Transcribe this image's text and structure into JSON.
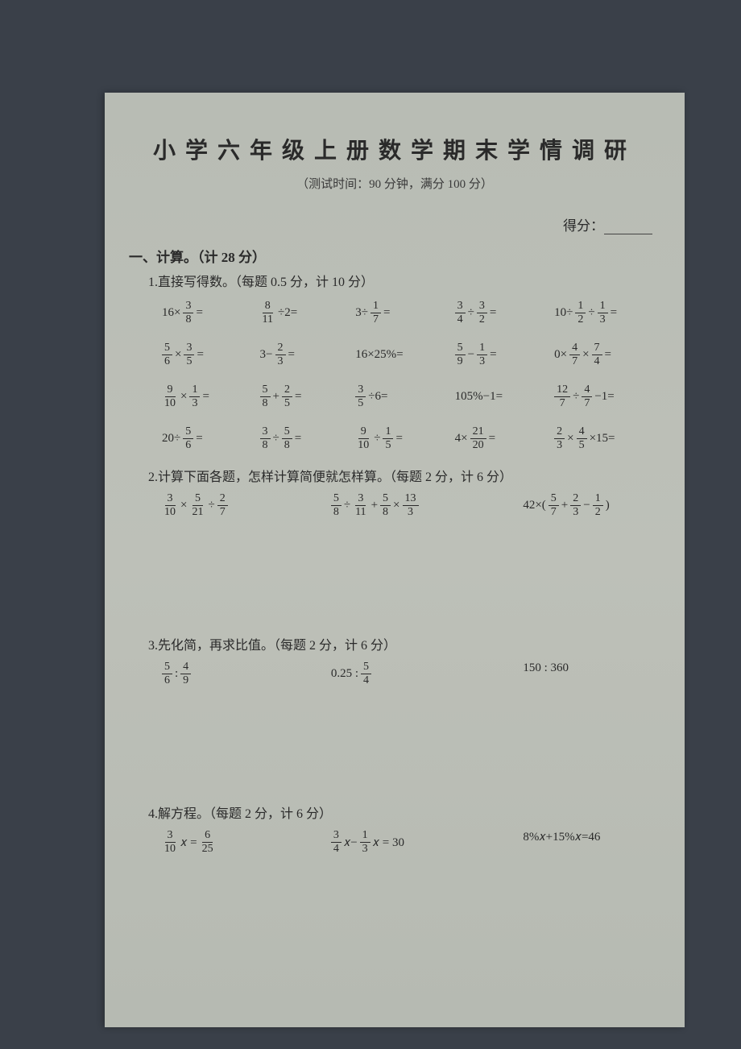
{
  "title": "小学六年级上册数学期末学情调研",
  "subtitle": "（测试时间：90 分钟，满分 100 分）",
  "score_label": "得分：",
  "section1": {
    "header": "一、计算。（计 28 分）",
    "q1": {
      "header": "1.直接写得数。（每题 0.5 分，计 10 分）",
      "rows": [
        [
          {
            "parts": [
              {
                "t": "txt",
                "v": "16×"
              },
              {
                "t": "frac",
                "n": "3",
                "d": "8"
              },
              {
                "t": "txt",
                "v": "="
              }
            ]
          },
          {
            "parts": [
              {
                "t": "frac",
                "n": "8",
                "d": "11"
              },
              {
                "t": "txt",
                "v": "÷2="
              }
            ]
          },
          {
            "parts": [
              {
                "t": "txt",
                "v": "3÷"
              },
              {
                "t": "frac",
                "n": "1",
                "d": "7"
              },
              {
                "t": "txt",
                "v": "="
              }
            ]
          },
          {
            "parts": [
              {
                "t": "frac",
                "n": "3",
                "d": "4"
              },
              {
                "t": "txt",
                "v": "÷"
              },
              {
                "t": "frac",
                "n": "3",
                "d": "2"
              },
              {
                "t": "txt",
                "v": "="
              }
            ]
          },
          {
            "parts": [
              {
                "t": "txt",
                "v": "10÷"
              },
              {
                "t": "frac",
                "n": "1",
                "d": "2"
              },
              {
                "t": "txt",
                "v": "÷"
              },
              {
                "t": "frac",
                "n": "1",
                "d": "3"
              },
              {
                "t": "txt",
                "v": "="
              }
            ]
          }
        ],
        [
          {
            "parts": [
              {
                "t": "frac",
                "n": "5",
                "d": "6"
              },
              {
                "t": "txt",
                "v": "×"
              },
              {
                "t": "frac",
                "n": "3",
                "d": "5"
              },
              {
                "t": "txt",
                "v": "="
              }
            ]
          },
          {
            "parts": [
              {
                "t": "txt",
                "v": "3−"
              },
              {
                "t": "frac",
                "n": "2",
                "d": "3"
              },
              {
                "t": "txt",
                "v": "="
              }
            ]
          },
          {
            "parts": [
              {
                "t": "txt",
                "v": "16×25%="
              }
            ]
          },
          {
            "parts": [
              {
                "t": "frac",
                "n": "5",
                "d": "9"
              },
              {
                "t": "txt",
                "v": "−"
              },
              {
                "t": "frac",
                "n": "1",
                "d": "3"
              },
              {
                "t": "txt",
                "v": "="
              }
            ]
          },
          {
            "parts": [
              {
                "t": "txt",
                "v": "0×"
              },
              {
                "t": "frac",
                "n": "4",
                "d": "7"
              },
              {
                "t": "txt",
                "v": "×"
              },
              {
                "t": "frac",
                "n": "7",
                "d": "4"
              },
              {
                "t": "txt",
                "v": "="
              }
            ]
          }
        ],
        [
          {
            "parts": [
              {
                "t": "frac",
                "n": "9",
                "d": "10"
              },
              {
                "t": "txt",
                "v": "×"
              },
              {
                "t": "frac",
                "n": "1",
                "d": "3"
              },
              {
                "t": "txt",
                "v": "="
              }
            ]
          },
          {
            "parts": [
              {
                "t": "frac",
                "n": "5",
                "d": "8"
              },
              {
                "t": "txt",
                "v": "+"
              },
              {
                "t": "frac",
                "n": "2",
                "d": "5"
              },
              {
                "t": "txt",
                "v": "="
              }
            ]
          },
          {
            "parts": [
              {
                "t": "frac",
                "n": "3",
                "d": "5"
              },
              {
                "t": "txt",
                "v": "÷6="
              }
            ]
          },
          {
            "parts": [
              {
                "t": "txt",
                "v": "105%−1="
              }
            ]
          },
          {
            "parts": [
              {
                "t": "frac",
                "n": "12",
                "d": "7"
              },
              {
                "t": "txt",
                "v": "÷"
              },
              {
                "t": "frac",
                "n": "4",
                "d": "7"
              },
              {
                "t": "txt",
                "v": "−1="
              }
            ]
          }
        ],
        [
          {
            "parts": [
              {
                "t": "txt",
                "v": "20÷"
              },
              {
                "t": "frac",
                "n": "5",
                "d": "6"
              },
              {
                "t": "txt",
                "v": "="
              }
            ]
          },
          {
            "parts": [
              {
                "t": "frac",
                "n": "3",
                "d": "8"
              },
              {
                "t": "txt",
                "v": "÷"
              },
              {
                "t": "frac",
                "n": "5",
                "d": "8"
              },
              {
                "t": "txt",
                "v": "="
              }
            ]
          },
          {
            "parts": [
              {
                "t": "frac",
                "n": "9",
                "d": "10"
              },
              {
                "t": "txt",
                "v": "÷"
              },
              {
                "t": "frac",
                "n": "1",
                "d": "5"
              },
              {
                "t": "txt",
                "v": "="
              }
            ]
          },
          {
            "parts": [
              {
                "t": "txt",
                "v": "4×"
              },
              {
                "t": "frac",
                "n": "21",
                "d": "20"
              },
              {
                "t": "txt",
                "v": "="
              }
            ]
          },
          {
            "parts": [
              {
                "t": "frac",
                "n": "2",
                "d": "3"
              },
              {
                "t": "txt",
                "v": "×"
              },
              {
                "t": "frac",
                "n": "4",
                "d": "5"
              },
              {
                "t": "txt",
                "v": "×15="
              }
            ]
          }
        ]
      ]
    },
    "q2": {
      "header": "2.计算下面各题，怎样计算简便就怎样算。（每题 2 分，计 6 分）",
      "problems": [
        {
          "parts": [
            {
              "t": "frac",
              "n": "3",
              "d": "10"
            },
            {
              "t": "txt",
              "v": "×"
            },
            {
              "t": "frac",
              "n": "5",
              "d": "21"
            },
            {
              "t": "txt",
              "v": "÷"
            },
            {
              "t": "frac",
              "n": "2",
              "d": "7"
            }
          ]
        },
        {
          "parts": [
            {
              "t": "frac",
              "n": "5",
              "d": "8"
            },
            {
              "t": "txt",
              "v": "÷"
            },
            {
              "t": "frac",
              "n": "3",
              "d": "11"
            },
            {
              "t": "txt",
              "v": "+"
            },
            {
              "t": "frac",
              "n": "5",
              "d": "8"
            },
            {
              "t": "txt",
              "v": "×"
            },
            {
              "t": "frac",
              "n": "13",
              "d": "3"
            }
          ]
        },
        {
          "parts": [
            {
              "t": "txt",
              "v": "42×("
            },
            {
              "t": "frac",
              "n": "5",
              "d": "7"
            },
            {
              "t": "txt",
              "v": "+"
            },
            {
              "t": "frac",
              "n": "2",
              "d": "3"
            },
            {
              "t": "txt",
              "v": "−"
            },
            {
              "t": "frac",
              "n": "1",
              "d": "2"
            },
            {
              "t": "txt",
              "v": ")"
            }
          ]
        }
      ]
    },
    "q3": {
      "header": "3.先化简，再求比值。（每题 2 分，计 6 分）",
      "problems": [
        {
          "parts": [
            {
              "t": "frac",
              "n": "5",
              "d": "6"
            },
            {
              "t": "txt",
              "v": " : "
            },
            {
              "t": "frac",
              "n": "4",
              "d": "9"
            }
          ]
        },
        {
          "parts": [
            {
              "t": "txt",
              "v": "0.25 : "
            },
            {
              "t": "frac",
              "n": "5",
              "d": "4"
            }
          ]
        },
        {
          "parts": [
            {
              "t": "txt",
              "v": "150 : 360"
            }
          ]
        }
      ]
    },
    "q4": {
      "header": "4.解方程。（每题 2 分，计 6 分）",
      "problems": [
        {
          "parts": [
            {
              "t": "frac",
              "n": "3",
              "d": "10"
            },
            {
              "t": "txt",
              "v": "𝑥 ="
            },
            {
              "t": "frac",
              "n": "6",
              "d": "25"
            }
          ]
        },
        {
          "parts": [
            {
              "t": "frac",
              "n": "3",
              "d": "4"
            },
            {
              "t": "txt",
              "v": "𝑥−"
            },
            {
              "t": "frac",
              "n": "1",
              "d": "3"
            },
            {
              "t": "txt",
              "v": "𝑥 = 30"
            }
          ]
        },
        {
          "parts": [
            {
              "t": "txt",
              "v": "8%𝑥+15%𝑥=46"
            }
          ]
        }
      ]
    }
  }
}
